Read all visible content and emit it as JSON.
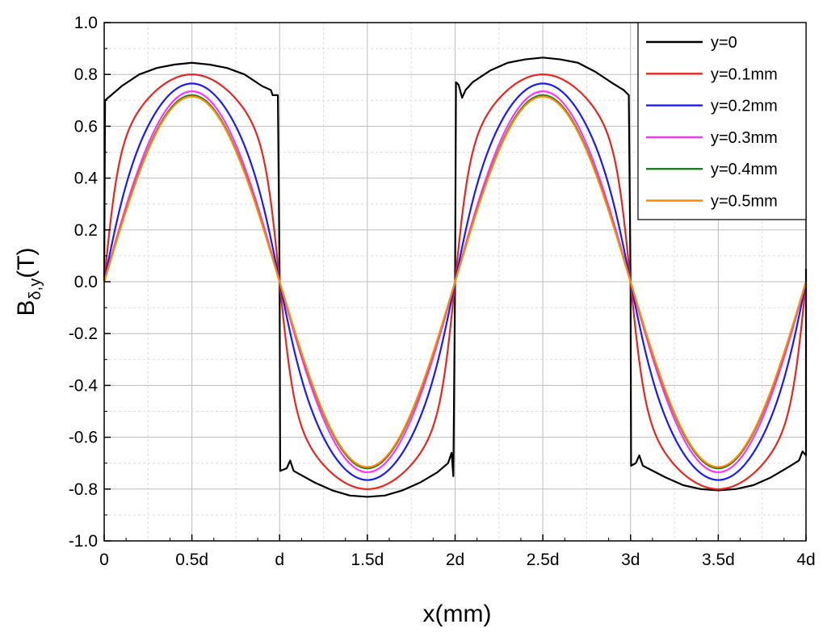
{
  "chart_data": {
    "type": "line",
    "title": "",
    "xlabel": "x(mm)",
    "ylabel_main": "B",
    "ylabel_sub": "δ,y",
    "ylabel_unit": "(T)",
    "xlim": [
      0,
      4
    ],
    "ylim": [
      -1.0,
      1.0
    ],
    "grid": true,
    "legend_position": "top-right",
    "x_ticks": [
      0,
      0.5,
      1,
      1.5,
      2,
      2.5,
      3,
      3.5,
      4
    ],
    "x_tick_labels": [
      "0",
      "0.5d",
      "d",
      "1.5d",
      "2d",
      "2.5d",
      "3d",
      "3.5d",
      "4d"
    ],
    "y_ticks": [
      -1.0,
      -0.8,
      -0.6,
      -0.4,
      -0.2,
      0.0,
      0.2,
      0.4,
      0.6,
      0.8,
      1.0
    ],
    "y_tick_labels": [
      "-1.0",
      "-0.8",
      "-0.6",
      "-0.4",
      "-0.2",
      "0.0",
      "0.2",
      "0.4",
      "0.6",
      "0.8",
      "1.0"
    ],
    "x_unit": "d",
    "series": [
      {
        "name": "y=0",
        "color": "#000000",
        "points": [
          [
            0,
            0
          ],
          [
            0.005,
            0.7
          ],
          [
            0.04,
            0.72
          ],
          [
            0.1,
            0.755
          ],
          [
            0.2,
            0.8
          ],
          [
            0.3,
            0.825
          ],
          [
            0.4,
            0.838
          ],
          [
            0.5,
            0.845
          ],
          [
            0.6,
            0.838
          ],
          [
            0.7,
            0.825
          ],
          [
            0.8,
            0.8
          ],
          [
            0.9,
            0.755
          ],
          [
            0.95,
            0.74
          ],
          [
            0.96,
            0.72
          ],
          [
            0.99,
            0.72
          ],
          [
            1.0,
            0.0
          ],
          [
            1.003,
            -0.73
          ],
          [
            1.04,
            -0.72
          ],
          [
            1.06,
            -0.69
          ],
          [
            1.08,
            -0.73
          ],
          [
            1.2,
            -0.775
          ],
          [
            1.3,
            -0.805
          ],
          [
            1.4,
            -0.825
          ],
          [
            1.5,
            -0.83
          ],
          [
            1.6,
            -0.825
          ],
          [
            1.7,
            -0.805
          ],
          [
            1.8,
            -0.775
          ],
          [
            1.9,
            -0.735
          ],
          [
            1.96,
            -0.7
          ],
          [
            1.98,
            -0.66
          ],
          [
            1.99,
            -0.75
          ],
          [
            2.0,
            0.0
          ],
          [
            2.005,
            0.77
          ],
          [
            2.02,
            0.76
          ],
          [
            2.04,
            0.71
          ],
          [
            2.06,
            0.74
          ],
          [
            2.1,
            0.77
          ],
          [
            2.2,
            0.815
          ],
          [
            2.3,
            0.845
          ],
          [
            2.4,
            0.858
          ],
          [
            2.5,
            0.865
          ],
          [
            2.6,
            0.858
          ],
          [
            2.7,
            0.845
          ],
          [
            2.8,
            0.81
          ],
          [
            2.9,
            0.765
          ],
          [
            2.96,
            0.74
          ],
          [
            2.99,
            0.72
          ],
          [
            3.0,
            0.0
          ],
          [
            3.003,
            -0.71
          ],
          [
            3.03,
            -0.7
          ],
          [
            3.05,
            -0.67
          ],
          [
            3.07,
            -0.71
          ],
          [
            3.2,
            -0.755
          ],
          [
            3.3,
            -0.785
          ],
          [
            3.4,
            -0.8
          ],
          [
            3.5,
            -0.805
          ],
          [
            3.6,
            -0.8
          ],
          [
            3.7,
            -0.785
          ],
          [
            3.8,
            -0.755
          ],
          [
            3.9,
            -0.715
          ],
          [
            3.96,
            -0.69
          ],
          [
            3.98,
            -0.655
          ],
          [
            4.0,
            -0.67
          ],
          [
            4.0,
            0.05
          ]
        ]
      },
      {
        "name": "y=0.1mm",
        "color": "#e8261f",
        "amplitude": 0.8,
        "shape": 0.62
      },
      {
        "name": "y=0.2mm",
        "color": "#1a1aff",
        "amplitude": 0.765,
        "shape": 0.35
      },
      {
        "name": "y=0.3mm",
        "color": "#ff33ff",
        "amplitude": 0.735,
        "shape": 0.16
      },
      {
        "name": "y=0.4mm",
        "color": "#1f7a1f",
        "amplitude": 0.72,
        "shape": 0.07
      },
      {
        "name": "y=0.5mm",
        "color": "#ff8c00",
        "amplitude": 0.715,
        "shape": 0.04
      }
    ]
  }
}
